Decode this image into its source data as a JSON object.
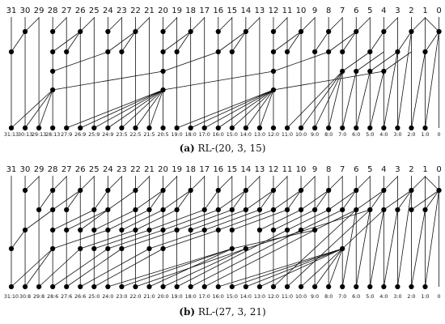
{
  "diagrams": [
    {
      "caption_tag": "(a)",
      "caption_text": "RL-(20, 3, 15)",
      "bits": [
        "31",
        "30",
        "29",
        "28",
        "27",
        "26",
        "25",
        "24",
        "23",
        "22",
        "21",
        "20",
        "19",
        "18",
        "17",
        "16",
        "15",
        "14",
        "13",
        "12",
        "11",
        "10",
        "9",
        "8",
        "7",
        "6",
        "5",
        "4",
        "3",
        "2",
        "1",
        "0"
      ],
      "spans": [
        "31:13",
        "30:13",
        "29:13",
        "28:13",
        "27:9",
        "26:9",
        "25:9",
        "24:9",
        "23:5",
        "22:5",
        "21:5",
        "20:5",
        "19:0",
        "18:0",
        "17:0",
        "16:0",
        "15:0",
        "14:0",
        "13:0",
        "12:0",
        "11:0",
        "10:0",
        "9:0",
        "8:0",
        "7:0",
        "6:0",
        "5:0",
        "4:0",
        "3:0",
        "2:0",
        "1:0",
        "0"
      ]
    },
    {
      "caption_tag": "(b)",
      "caption_text": "RL-(27, 3, 21)",
      "bits": [
        "31",
        "30",
        "29",
        "28",
        "27",
        "26",
        "25",
        "24",
        "23",
        "22",
        "21",
        "20",
        "19",
        "18",
        "17",
        "16",
        "15",
        "14",
        "13",
        "12",
        "11",
        "10",
        "9",
        "8",
        "7",
        "6",
        "5",
        "4",
        "3",
        "2",
        "1",
        "0"
      ],
      "spans": [
        "31:10",
        "30:8",
        "29:8",
        "28:6",
        "27:6",
        "26:6",
        "25:0",
        "24:0",
        "23:0",
        "22:0",
        "21:0",
        "20:0",
        "19:0",
        "18:0",
        "17:0",
        "16:0",
        "15:0",
        "14:0",
        "13:0",
        "12:0",
        "11:0",
        "10:0",
        "9:0",
        "8:0",
        "7:0",
        "6:0",
        "5:0",
        "4:0",
        "3:0",
        "2:0",
        "1:0",
        "0"
      ]
    }
  ]
}
